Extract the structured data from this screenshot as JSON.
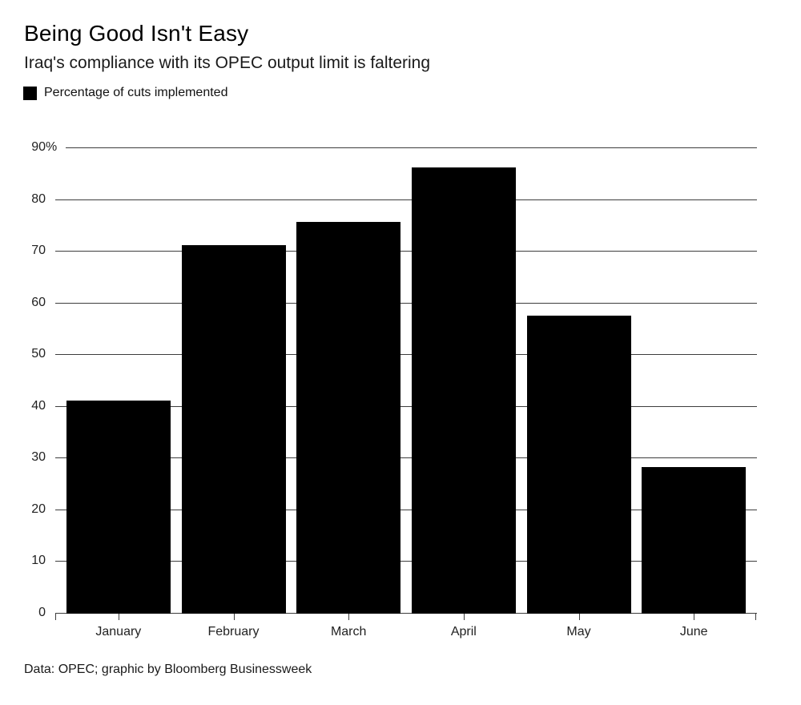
{
  "header": {
    "title": "Being Good Isn't Easy",
    "subtitle": "Iraq's compliance with its OPEC output limit is faltering"
  },
  "legend": {
    "label": "Percentage of cuts implemented",
    "swatch_color": "#000000"
  },
  "footer": {
    "source": "Data: OPEC; graphic by Bloomberg Businessweek"
  },
  "colors": {
    "background": "#ffffff",
    "bar": "#000000",
    "gridline": "#3d3d3d",
    "text": "#1a1a1a"
  },
  "chart_data": {
    "type": "bar",
    "title": "Being Good Isn't Easy",
    "subtitle": "Iraq's compliance with its OPEC output limit is faltering",
    "source_note": "Data: OPEC; graphic by Bloomberg Businessweek",
    "categories": [
      "January",
      "February",
      "March",
      "April",
      "May",
      "June"
    ],
    "series": [
      {
        "name": "Percentage of cuts implemented",
        "values": [
          41.2,
          71.3,
          75.7,
          86.3,
          57.7,
          28.3
        ]
      }
    ],
    "xlabel": "",
    "ylabel": "",
    "ylim": [
      0,
      90
    ],
    "yticks": [
      {
        "value": 90,
        "label": "90",
        "suffix": "%"
      },
      {
        "value": 80,
        "label": "80"
      },
      {
        "value": 70,
        "label": "70"
      },
      {
        "value": 60,
        "label": "60"
      },
      {
        "value": 50,
        "label": "50"
      },
      {
        "value": 40,
        "label": "40"
      },
      {
        "value": 30,
        "label": "30"
      },
      {
        "value": 20,
        "label": "20"
      },
      {
        "value": 10,
        "label": "10"
      },
      {
        "value": 0,
        "label": "0"
      }
    ],
    "grid": "horizontal",
    "legend_position": "top-left",
    "bar_color": "#000000"
  }
}
